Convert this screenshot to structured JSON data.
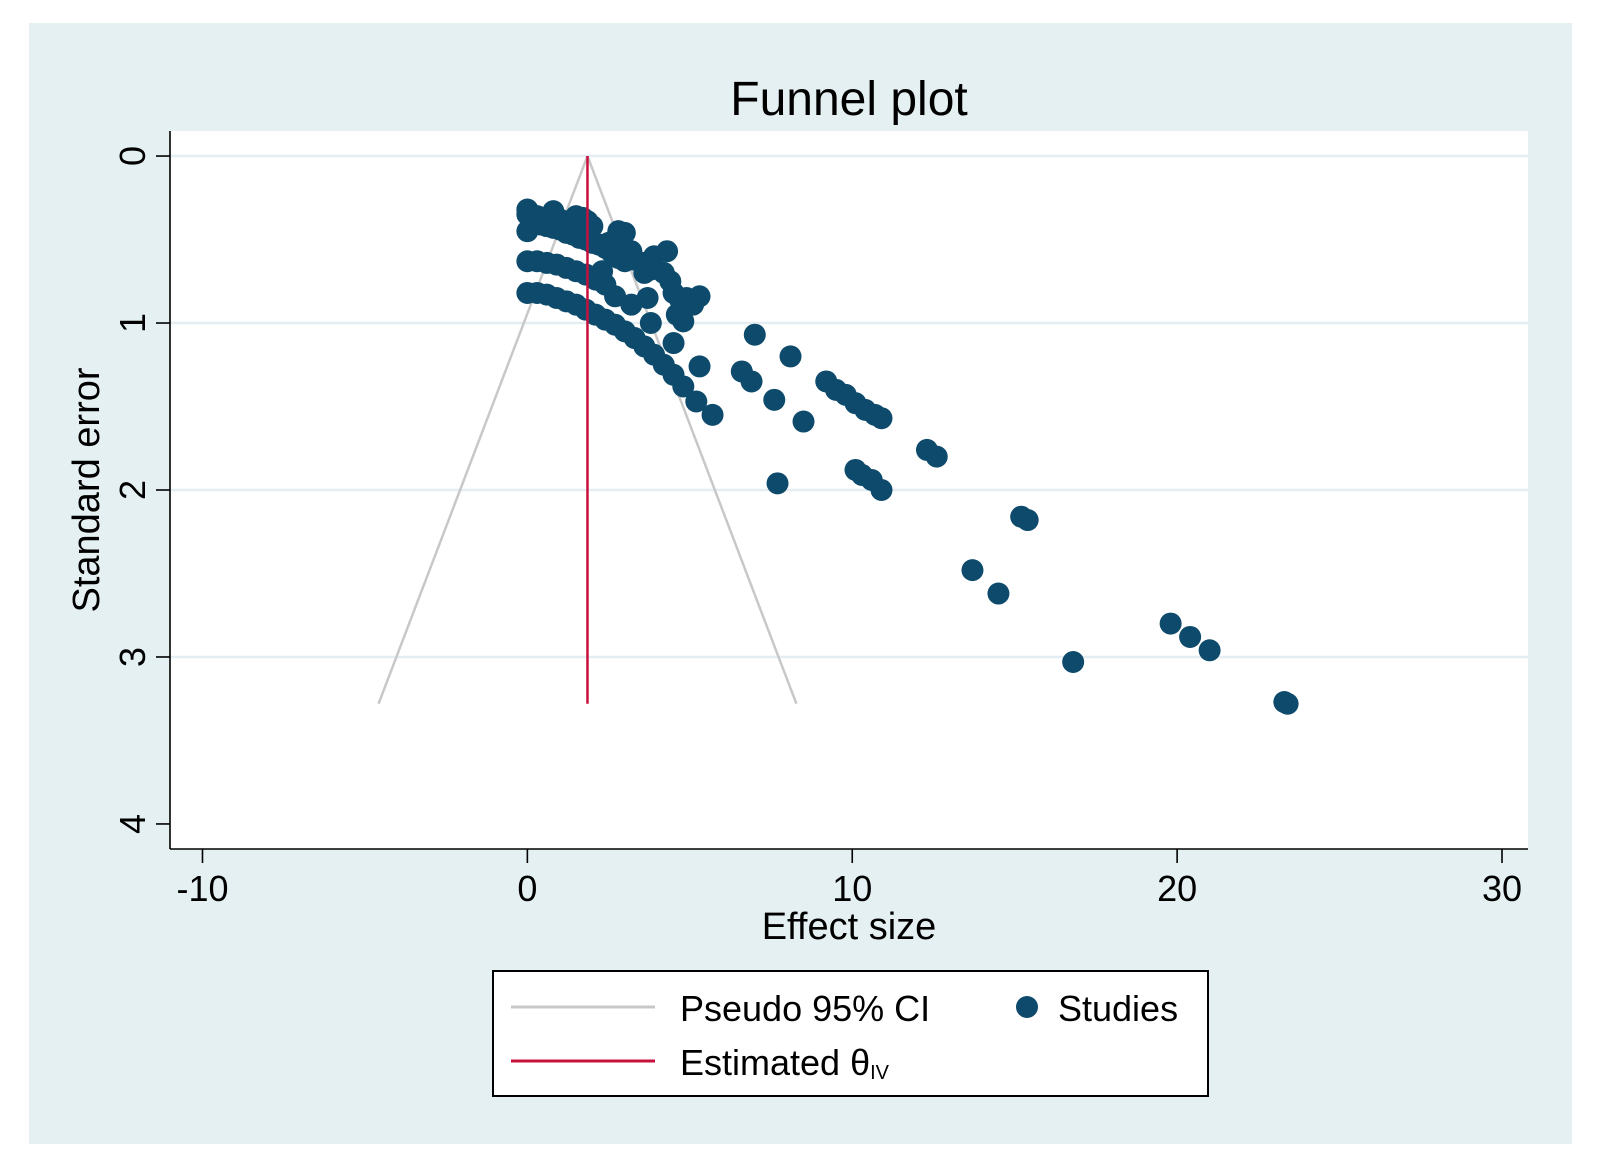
{
  "colors": {
    "outer_background": "#e4f0f2",
    "plot_background": "#ffffff",
    "gridline": "#e4eef2",
    "title": "#1a2f55",
    "marker": "#0d4a6b",
    "ci_line": "#c8c8c8",
    "estimate_line": "#c8103c"
  },
  "chart_data": {
    "type": "scatter",
    "title": "Funnel plot",
    "xlabel": "Effect size",
    "ylabel": "Standard error",
    "xlim": [
      -11,
      30.8
    ],
    "ylim": [
      -0.15,
      4.15
    ],
    "y_inverted": true,
    "xticks": [
      -10,
      0,
      10,
      20,
      30
    ],
    "xtick_labels": [
      "-10",
      "0",
      "10",
      "20",
      "30"
    ],
    "yticks": [
      0,
      1,
      2,
      3,
      4
    ],
    "ytick_labels": [
      "0",
      "1",
      "2",
      "3",
      "4"
    ],
    "gridlines": "horizontal",
    "estimate": 1.85,
    "ci": {
      "apex_se": 0,
      "bottom_se": 3.28,
      "bottom_left": -4.58,
      "bottom_right": 8.28
    },
    "legend": {
      "placement": "bottom",
      "entries": [
        {
          "key": "ci",
          "label": "Pseudo 95% CI",
          "type": "line"
        },
        {
          "key": "studies",
          "label": "Studies",
          "type": "marker"
        },
        {
          "key": "estimate",
          "label": "Estimated θ",
          "subscript": "IV",
          "type": "line"
        }
      ]
    },
    "series": [
      {
        "name": "Studies",
        "points": [
          [
            0.0,
            0.32
          ],
          [
            0.0,
            0.35
          ],
          [
            0.0,
            0.45
          ],
          [
            0.3,
            0.36
          ],
          [
            0.5,
            0.38
          ],
          [
            0.8,
            0.33
          ],
          [
            1.0,
            0.38
          ],
          [
            1.2,
            0.4
          ],
          [
            1.4,
            0.38
          ],
          [
            1.5,
            0.36
          ],
          [
            1.7,
            0.37
          ],
          [
            1.85,
            0.39
          ],
          [
            2.0,
            0.42
          ],
          [
            0.2,
            0.4
          ],
          [
            0.4,
            0.41
          ],
          [
            0.6,
            0.42
          ],
          [
            0.8,
            0.43
          ],
          [
            1.0,
            0.44
          ],
          [
            1.2,
            0.46
          ],
          [
            1.4,
            0.47
          ],
          [
            1.6,
            0.49
          ],
          [
            1.8,
            0.5
          ],
          [
            2.0,
            0.52
          ],
          [
            2.2,
            0.53
          ],
          [
            2.5,
            0.52
          ],
          [
            2.7,
            0.5
          ],
          [
            2.8,
            0.45
          ],
          [
            3.0,
            0.46
          ],
          [
            3.0,
            0.55
          ],
          [
            3.2,
            0.57
          ],
          [
            2.4,
            0.55
          ],
          [
            2.6,
            0.58
          ],
          [
            2.8,
            0.61
          ],
          [
            3.0,
            0.63
          ],
          [
            3.3,
            0.62
          ],
          [
            3.6,
            0.64
          ],
          [
            3.9,
            0.6
          ],
          [
            4.3,
            0.57
          ],
          [
            4.4,
            0.75
          ],
          [
            3.6,
            0.7
          ],
          [
            3.8,
            0.68
          ],
          [
            4.2,
            0.7
          ],
          [
            4.5,
            0.82
          ],
          [
            4.7,
            0.86
          ],
          [
            4.9,
            0.85
          ],
          [
            5.1,
            0.89
          ],
          [
            5.3,
            0.84
          ],
          [
            4.6,
            0.95
          ],
          [
            4.8,
            0.99
          ],
          [
            3.8,
            1.0
          ],
          [
            4.5,
            1.12
          ],
          [
            5.3,
            1.26
          ],
          [
            2.3,
            0.69
          ],
          [
            2.7,
            0.84
          ],
          [
            3.2,
            0.89
          ],
          [
            3.7,
            0.85
          ],
          [
            0.0,
            0.63
          ],
          [
            0.3,
            0.63
          ],
          [
            0.6,
            0.64
          ],
          [
            0.9,
            0.65
          ],
          [
            1.2,
            0.67
          ],
          [
            1.5,
            0.69
          ],
          [
            1.8,
            0.71
          ],
          [
            2.1,
            0.74
          ],
          [
            2.4,
            0.77
          ],
          [
            0.0,
            0.82
          ],
          [
            0.3,
            0.82
          ],
          [
            0.6,
            0.83
          ],
          [
            0.9,
            0.85
          ],
          [
            1.2,
            0.87
          ],
          [
            1.5,
            0.89
          ],
          [
            1.8,
            0.92
          ],
          [
            2.1,
            0.95
          ],
          [
            2.4,
            0.98
          ],
          [
            2.7,
            1.01
          ],
          [
            3.0,
            1.05
          ],
          [
            3.3,
            1.09
          ],
          [
            3.6,
            1.14
          ],
          [
            3.9,
            1.19
          ],
          [
            4.2,
            1.25
          ],
          [
            4.5,
            1.31
          ],
          [
            4.8,
            1.38
          ],
          [
            5.2,
            1.47
          ],
          [
            5.7,
            1.55
          ],
          [
            7.0,
            1.07
          ],
          [
            8.1,
            1.2
          ],
          [
            6.6,
            1.29
          ],
          [
            6.9,
            1.35
          ],
          [
            7.6,
            1.46
          ],
          [
            8.5,
            1.59
          ],
          [
            9.2,
            1.35
          ],
          [
            9.5,
            1.4
          ],
          [
            9.8,
            1.43
          ],
          [
            10.1,
            1.48
          ],
          [
            10.4,
            1.52
          ],
          [
            10.7,
            1.55
          ],
          [
            10.9,
            1.57
          ],
          [
            7.7,
            1.96
          ],
          [
            10.1,
            1.88
          ],
          [
            10.3,
            1.91
          ],
          [
            10.6,
            1.94
          ],
          [
            10.9,
            2.0
          ],
          [
            12.3,
            1.76
          ],
          [
            12.6,
            1.8
          ],
          [
            15.2,
            2.16
          ],
          [
            15.4,
            2.18
          ],
          [
            13.7,
            2.48
          ],
          [
            14.5,
            2.62
          ],
          [
            16.8,
            3.03
          ],
          [
            19.8,
            2.8
          ],
          [
            20.4,
            2.88
          ],
          [
            21.0,
            2.96
          ],
          [
            23.3,
            3.27
          ],
          [
            23.4,
            3.28
          ]
        ]
      }
    ]
  }
}
